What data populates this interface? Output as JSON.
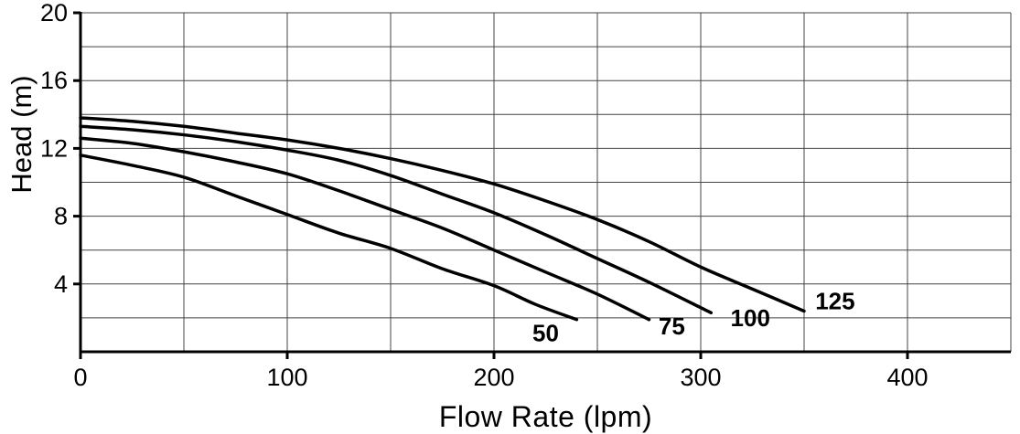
{
  "chart_data": {
    "type": "line",
    "title": "",
    "xlabel": "Flow Rate (lpm)",
    "ylabel": "Head (m)",
    "xlim": [
      0,
      450
    ],
    "ylim": [
      0,
      20
    ],
    "x_ticks": [
      0,
      100,
      200,
      300,
      400
    ],
    "y_ticks": [
      4,
      8,
      12,
      16,
      20
    ],
    "x_grid_step": 50,
    "y_grid_step": 2,
    "grid": true,
    "legend": "inline-curve-labels",
    "line_color": "#000000",
    "grid_color": "#444444",
    "series": [
      {
        "name": "50",
        "label_pos": [
          225,
          1.1
        ],
        "points": [
          [
            0,
            11.6
          ],
          [
            25,
            11.0
          ],
          [
            50,
            10.3
          ],
          [
            75,
            9.2
          ],
          [
            100,
            8.1
          ],
          [
            125,
            7.0
          ],
          [
            150,
            6.1
          ],
          [
            175,
            4.9
          ],
          [
            200,
            3.9
          ],
          [
            220,
            2.8
          ],
          [
            240,
            1.9
          ]
        ]
      },
      {
        "name": "75",
        "label_pos": [
          286,
          1.5
        ],
        "points": [
          [
            0,
            12.6
          ],
          [
            25,
            12.3
          ],
          [
            50,
            11.8
          ],
          [
            75,
            11.2
          ],
          [
            100,
            10.5
          ],
          [
            125,
            9.5
          ],
          [
            150,
            8.4
          ],
          [
            175,
            7.3
          ],
          [
            200,
            6.0
          ],
          [
            225,
            4.7
          ],
          [
            250,
            3.4
          ],
          [
            275,
            1.9
          ]
        ]
      },
      {
        "name": "100",
        "label_pos": [
          324,
          2.0
        ],
        "points": [
          [
            0,
            13.3
          ],
          [
            25,
            13.1
          ],
          [
            50,
            12.8
          ],
          [
            75,
            12.4
          ],
          [
            100,
            11.9
          ],
          [
            125,
            11.3
          ],
          [
            150,
            10.4
          ],
          [
            175,
            9.3
          ],
          [
            200,
            8.2
          ],
          [
            225,
            6.9
          ],
          [
            250,
            5.5
          ],
          [
            275,
            4.1
          ],
          [
            305,
            2.3
          ]
        ]
      },
      {
        "name": "125",
        "label_pos": [
          365,
          3.0
        ],
        "points": [
          [
            0,
            13.8
          ],
          [
            25,
            13.6
          ],
          [
            50,
            13.3
          ],
          [
            75,
            12.9
          ],
          [
            100,
            12.5
          ],
          [
            125,
            12.0
          ],
          [
            150,
            11.4
          ],
          [
            175,
            10.7
          ],
          [
            200,
            9.9
          ],
          [
            225,
            8.9
          ],
          [
            250,
            7.8
          ],
          [
            275,
            6.5
          ],
          [
            300,
            5.0
          ],
          [
            325,
            3.7
          ],
          [
            350,
            2.4
          ]
        ]
      }
    ]
  }
}
